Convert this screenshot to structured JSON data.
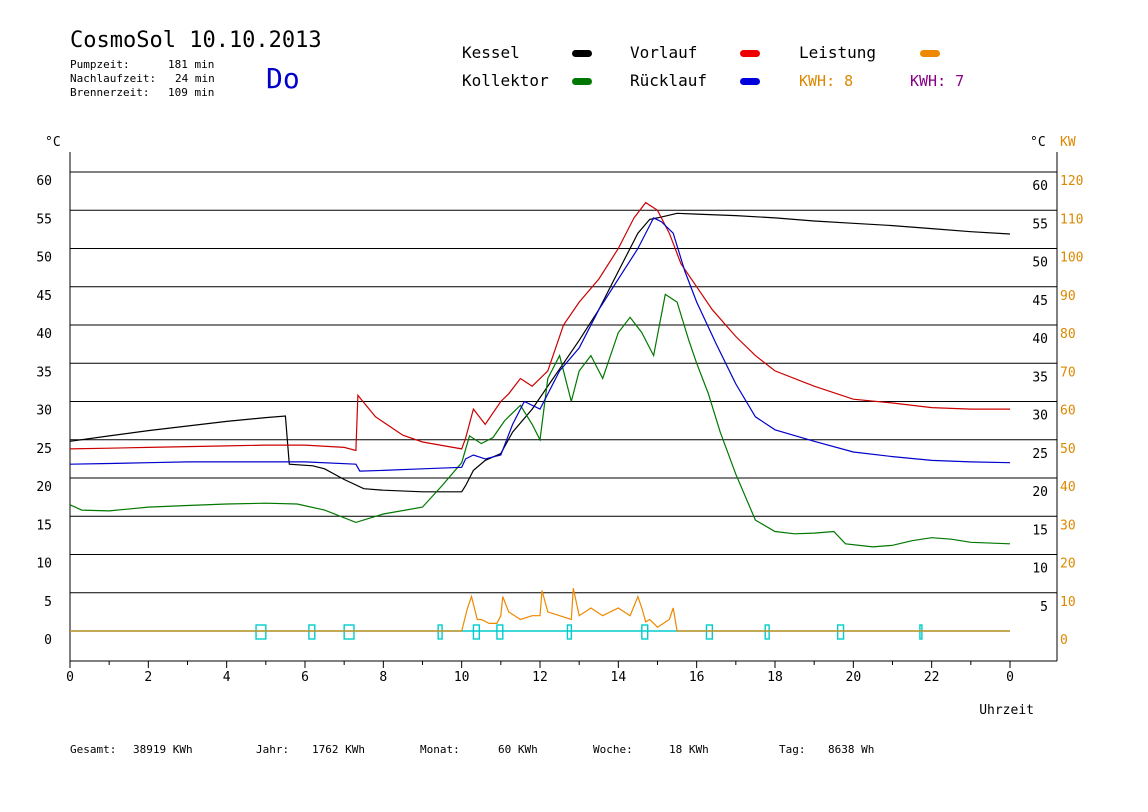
{
  "header": {
    "title": "CosmoSol 10.10.2013",
    "pumpzeit_label": "Pumpzeit:",
    "pumpzeit_value": "181 min",
    "nachlaufzeit_label": "Nachlaufzeit:",
    "nachlaufzeit_value": "24 min",
    "brennerzeit_label": "Brennerzeit:",
    "brennerzeit_value": "109 min",
    "weekday": "Do"
  },
  "legend": {
    "kessel": "Kessel",
    "kollektor": "Kollektor",
    "vorlauf": "Vorlauf",
    "ruecklauf": "Rücklauf",
    "leistung": "Leistung",
    "kwh_orange": "KWH: 8",
    "kwh_purple": "KWH: 7"
  },
  "colors": {
    "kessel": "#000000",
    "kollektor": "#007700",
    "vorlauf": "#cc0000",
    "ruecklauf": "#0000cc",
    "leistung": "#ee8800",
    "kwh_purple": "#880088",
    "pump": "#00cccc",
    "kw_axis": "#dd8800"
  },
  "footer": {
    "gesamt_label": "Gesamt:",
    "gesamt_value": "38919 KWh",
    "jahr_label": "Jahr:",
    "jahr_value": "1762 KWh",
    "monat_label": "Monat:",
    "monat_value": "60 KWh",
    "woche_label": "Woche:",
    "woche_value": "18 KWh",
    "tag_label": "Tag:",
    "tag_value": "8638 Wh"
  },
  "chart_data": {
    "type": "line",
    "xlabel": "Uhrzeit",
    "ylabel_left": "°C",
    "ylabel_right": "°C",
    "ylabel_kw": "KW",
    "xlim": [
      0,
      24
    ],
    "ylim": [
      0,
      60
    ],
    "kw_lim": [
      0,
      120
    ],
    "x_ticks": [
      "0",
      "2",
      "4",
      "6",
      "8",
      "10",
      "12",
      "14",
      "16",
      "18",
      "20",
      "22",
      "0"
    ],
    "y_ticks_left": [
      "0",
      "5",
      "10",
      "15",
      "20",
      "25",
      "30",
      "35",
      "40",
      "45",
      "50",
      "55",
      "60"
    ],
    "y_ticks_right": [
      "5",
      "10",
      "15",
      "20",
      "25",
      "30",
      "35",
      "40",
      "45",
      "50",
      "55",
      "60"
    ],
    "kw_ticks": [
      "0",
      "10",
      "20",
      "30",
      "40",
      "50",
      "60",
      "70",
      "80",
      "90",
      "100",
      "110",
      "120"
    ],
    "grid": true,
    "series": [
      {
        "name": "Kessel",
        "x": [
          0,
          1,
          2,
          3,
          4,
          5,
          5.5,
          5.6,
          6.2,
          6.5,
          7,
          7.5,
          8,
          9,
          10,
          10.1,
          10.3,
          10.6,
          11,
          11.3,
          11.8,
          12.2,
          12.6,
          13,
          13.5,
          14,
          14.5,
          14.8,
          15,
          15.5,
          16,
          17,
          18,
          19,
          20,
          21,
          22,
          23,
          24
        ],
        "y": [
          24.8,
          25.5,
          26.2,
          26.8,
          27.4,
          27.9,
          28.1,
          21.8,
          21.6,
          21.2,
          19.8,
          18.6,
          18.4,
          18.2,
          18.2,
          19,
          21,
          22.3,
          23.2,
          26,
          29,
          32,
          35,
          38,
          42,
          47,
          52,
          53.8,
          54,
          54.6,
          54.5,
          54.3,
          54,
          53.6,
          53.3,
          53,
          52.6,
          52.2,
          51.9
        ]
      },
      {
        "name": "Kollektor",
        "x": [
          0,
          0.3,
          1,
          2,
          3,
          4,
          5,
          5.8,
          6.5,
          7.3,
          8,
          9,
          9.5,
          10,
          10.2,
          10.5,
          10.8,
          11.1,
          11.5,
          11.8,
          12,
          12.2,
          12.5,
          12.8,
          13,
          13.3,
          13.6,
          14,
          14.3,
          14.6,
          14.9,
          15.2,
          15.5,
          15.8,
          16,
          16.3,
          16.6,
          17,
          17.5,
          18,
          18.5,
          19,
          19.5,
          19.8,
          20.5,
          21,
          21.5,
          22,
          22.5,
          23,
          24
        ],
        "y": [
          16.5,
          15.8,
          15.7,
          16.2,
          16.4,
          16.6,
          16.7,
          16.6,
          15.8,
          14.2,
          15.3,
          16.2,
          19,
          22,
          25.5,
          24.5,
          25.3,
          27.5,
          29.5,
          27,
          25,
          33,
          36,
          30,
          34,
          36,
          33,
          39,
          41,
          39,
          36,
          44,
          43,
          38,
          35,
          31,
          26,
          20.5,
          14.5,
          13,
          12.7,
          12.8,
          13,
          11.4,
          11,
          11.2,
          11.8,
          12.2,
          12,
          11.6,
          11.4
        ]
      },
      {
        "name": "Vorlauf",
        "x": [
          0,
          1,
          2,
          3,
          4,
          5,
          6,
          7,
          7.3,
          7.35,
          7.8,
          8.5,
          9,
          10,
          10.1,
          10.3,
          10.6,
          11,
          11.2,
          11.5,
          11.8,
          12.2,
          12.6,
          13,
          13.5,
          14,
          14.4,
          14.7,
          15,
          15.3,
          15.6,
          16,
          16.4,
          17,
          17.5,
          18,
          19,
          20,
          21,
          22,
          23,
          24
        ],
        "y": [
          23.8,
          23.9,
          24,
          24.1,
          24.2,
          24.3,
          24.3,
          24,
          23.6,
          30.8,
          28,
          25.6,
          24.7,
          23.8,
          25.2,
          29,
          27,
          30,
          31,
          33,
          32,
          34,
          40,
          43,
          46,
          50,
          54,
          56,
          55,
          52,
          48,
          45,
          42,
          38.5,
          36,
          34,
          32,
          30.3,
          29.8,
          29.2,
          29,
          29
        ]
      },
      {
        "name": "Rücklauf",
        "x": [
          0,
          1,
          2,
          3,
          4,
          5,
          6,
          7.3,
          7.4,
          8,
          9,
          10,
          10.1,
          10.3,
          10.6,
          11,
          11.3,
          11.6,
          12,
          12.5,
          13,
          13.5,
          14,
          14.5,
          14.9,
          15.1,
          15.4,
          15.7,
          16,
          16.5,
          17,
          17.5,
          18,
          19,
          20,
          21,
          22,
          23,
          24
        ],
        "y": [
          21.8,
          21.9,
          22,
          22.1,
          22.1,
          22.1,
          22.1,
          21.8,
          20.9,
          21,
          21.2,
          21.4,
          22.5,
          23,
          22.5,
          23,
          27,
          30,
          29,
          34,
          37,
          42,
          46,
          50,
          54,
          53.5,
          52,
          47,
          43,
          37.5,
          32.3,
          28,
          26.3,
          24.8,
          23.4,
          22.8,
          22.3,
          22.1,
          22
        ]
      }
    ],
    "leistung": {
      "name": "Leistung",
      "x": [
        0,
        10,
        10.15,
        10.25,
        10.4,
        10.5,
        10.7,
        10.9,
        11,
        11.05,
        11.2,
        11.5,
        11.8,
        12,
        12.05,
        12.2,
        12.5,
        12.8,
        12.85,
        13,
        13.3,
        13.6,
        14,
        14.3,
        14.5,
        14.6,
        14.7,
        14.8,
        15,
        15.3,
        15.4,
        15.5,
        16,
        24
      ],
      "y": [
        0,
        0,
        3,
        4.5,
        1.5,
        1.5,
        1,
        1,
        2,
        4.5,
        2.5,
        1.5,
        2,
        2,
        5.3,
        2.5,
        2,
        1.5,
        5.6,
        2,
        3,
        2,
        3,
        2,
        4.5,
        3,
        1.2,
        1.5,
        0.5,
        1.5,
        3,
        0,
        0,
        0
      ]
    },
    "pumpe": {
      "name": "Pumpe",
      "intervals": [
        [
          4.75,
          5.0
        ],
        [
          6.1,
          6.25
        ],
        [
          7.0,
          7.25
        ],
        [
          9.4,
          9.5
        ],
        [
          10.3,
          10.45
        ],
        [
          10.9,
          11.05
        ],
        [
          12.7,
          12.8
        ],
        [
          14.6,
          14.75
        ],
        [
          16.25,
          16.4
        ],
        [
          17.75,
          17.85
        ],
        [
          19.6,
          19.75
        ],
        [
          21.7,
          21.75
        ]
      ]
    }
  }
}
